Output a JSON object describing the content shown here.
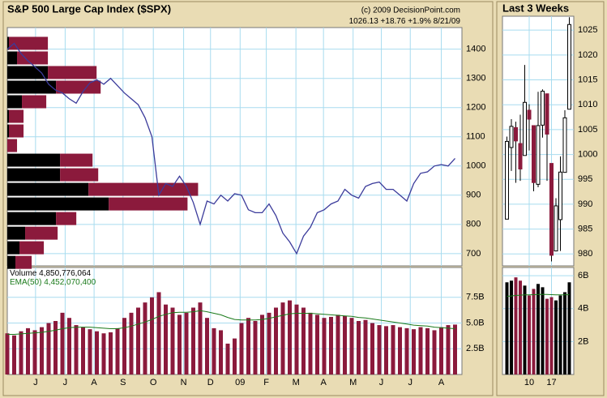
{
  "chart_data": [
    {
      "type": "line",
      "title": "S&P 500 Large Cap Index ($SPX)",
      "source": "(c) 2009 DecisionPoint.com",
      "last": 1026.13,
      "change": 18.76,
      "change_label": "+18.76",
      "change_pct": 1.9,
      "change_pct_label": "+1.9%",
      "date": "8/21/09",
      "color": "#3b3b9b",
      "grid": true,
      "x": [
        0,
        1,
        2,
        3,
        4,
        5,
        6,
        7,
        8,
        9,
        10,
        11,
        12,
        13,
        14,
        15,
        16,
        17,
        18,
        19,
        20,
        21,
        22,
        23,
        24,
        25,
        26,
        27,
        28,
        29,
        30,
        31,
        32,
        33,
        34,
        35,
        36,
        37,
        38,
        39,
        40,
        41,
        42,
        43,
        44,
        45,
        46,
        47,
        48,
        49,
        50,
        51,
        52,
        53,
        54,
        55,
        56,
        57,
        58,
        59,
        60,
        61,
        62,
        63,
        64,
        65
      ],
      "values": [
        1400,
        1420,
        1385,
        1360,
        1340,
        1318,
        1280,
        1260,
        1250,
        1230,
        1215,
        1255,
        1285,
        1295,
        1280,
        1300,
        1275,
        1250,
        1230,
        1210,
        1165,
        1100,
        900,
        940,
        930,
        965,
        930,
        875,
        800,
        880,
        870,
        900,
        880,
        905,
        900,
        850,
        840,
        840,
        870,
        830,
        770,
        740,
        700,
        760,
        790,
        840,
        850,
        870,
        880,
        920,
        900,
        890,
        930,
        940,
        945,
        920,
        920,
        900,
        880,
        940,
        975,
        980,
        1000,
        1005,
        1000,
        1026
      ],
      "xlim": [
        0,
        66
      ],
      "xticks": [
        {
          "value": 4.1,
          "label": "J"
        },
        {
          "value": 8.4,
          "label": "J"
        },
        {
          "value": 12.6,
          "label": "A"
        },
        {
          "value": 16.8,
          "label": "S"
        },
        {
          "value": 21.2,
          "label": "O"
        },
        {
          "value": 25.6,
          "label": "N"
        },
        {
          "value": 29.5,
          "label": "D"
        },
        {
          "value": 33.8,
          "label": "09"
        },
        {
          "value": 37.6,
          "label": "F"
        },
        {
          "value": 41.9,
          "label": "M"
        },
        {
          "value": 45.9,
          "label": "A"
        },
        {
          "value": 50.2,
          "label": "M"
        },
        {
          "value": 54.3,
          "label": "J"
        },
        {
          "value": 58.5,
          "label": "J"
        },
        {
          "value": 63,
          "label": "A"
        }
      ],
      "ylim": [
        658,
        1474
      ],
      "yticks": [
        700,
        800,
        900,
        1000,
        1100,
        1200,
        1300,
        1400
      ],
      "volume_by_price": {
        "bins": [
          645,
          695,
          745,
          795,
          845,
          895,
          945,
          995,
          1045,
          1095,
          1145,
          1195,
          1245,
          1295,
          1345,
          1395,
          1445
        ],
        "dark_color": "#000000",
        "red_color": "#8b1a3c",
        "xlim": [
          0,
          560
        ],
        "dark_values": [
          10,
          15,
          22,
          60,
          125,
          100,
          65,
          65,
          0,
          2,
          2,
          18,
          60,
          50,
          12,
          2
        ],
        "red_values": [
          20,
          30,
          40,
          25,
          97,
          135,
          47,
          40,
          12,
          18,
          18,
          30,
          55,
          60,
          38,
          48
        ]
      }
    },
    {
      "type": "bar",
      "label": "Volume",
      "value": 4850776064,
      "value_label": "4,850,776,064",
      "ema_label": "EMA(50)",
      "ema_value": 4452070400,
      "ema_value_label": "4,452,070,400",
      "color": "#8b1a3c",
      "ema_color": "#1a7a1a",
      "values": [
        4000000000.0,
        3800000000.0,
        4200000000.0,
        4500000000.0,
        4300000000.0,
        4600000000.0,
        5000000000.0,
        5200000000.0,
        6000000000.0,
        5500000000.0,
        4800000000.0,
        4600000000.0,
        4400000000.0,
        4200000000.0,
        4000000000.0,
        4100000000.0,
        4500000000.0,
        5500000000.0,
        6000000000.0,
        6500000000.0,
        7000000000.0,
        7500000000.0,
        8000000000.0,
        6800000000.0,
        6500000000.0,
        5800000000.0,
        6000000000.0,
        6500000000.0,
        7000000000.0,
        5500000000.0,
        4500000000.0,
        4300000000.0,
        3000000000.0,
        3500000000.0,
        5000000000.0,
        5500000000.0,
        5200000000.0,
        5800000000.0,
        6000000000.0,
        6500000000.0,
        7000000000.0,
        7200000000.0,
        6800000000.0,
        6500000000.0,
        6000000000.0,
        5800000000.0,
        5500000000.0,
        5600000000.0,
        5800000000.0,
        5700000000.0,
        5500000000.0,
        5200000000.0,
        5300000000.0,
        5000000000.0,
        4800000000.0,
        4700000000.0,
        4800000000.0,
        4600000000.0,
        4500000000.0,
        4400000000.0,
        4600000000.0,
        4500000000.0,
        4300000000.0,
        4600000000.0,
        4800000000.0,
        4850000000.0
      ],
      "ema": [
        3900000000.0,
        3900000000.0,
        3950000000.0,
        4000000000.0,
        4050000000.0,
        4100000000.0,
        4200000000.0,
        4300000000.0,
        4450000000.0,
        4550000000.0,
        4600000000.0,
        4600000000.0,
        4600000000.0,
        4550000000.0,
        4500000000.0,
        4450000000.0,
        4450000000.0,
        4550000000.0,
        4700000000.0,
        4900000000.0,
        5100000000.0,
        5350000000.0,
        5650000000.0,
        5850000000.0,
        6000000000.0,
        6050000000.0,
        6050000000.0,
        6100000000.0,
        6200000000.0,
        6100000000.0,
        5950000000.0,
        5800000000.0,
        5550000000.0,
        5350000000.0,
        5300000000.0,
        5300000000.0,
        5300000000.0,
        5350000000.0,
        5450000000.0,
        5600000000.0,
        5750000000.0,
        5900000000.0,
        5950000000.0,
        5950000000.0,
        5950000000.0,
        5900000000.0,
        5850000000.0,
        5800000000.0,
        5750000000.0,
        5700000000.0,
        5650000000.0,
        5550000000.0,
        5500000000.0,
        5400000000.0,
        5300000000.0,
        5200000000.0,
        5100000000.0,
        5000000000.0,
        4900000000.0,
        4800000000.0,
        4750000000.0,
        4700000000.0,
        4600000000.0,
        4550000000.0,
        4500000000.0,
        4450000000.0
      ],
      "ylim": [
        0,
        10400000000.0
      ],
      "yticks": [
        {
          "value": 2500000000.0,
          "label": "2.5B"
        },
        {
          "value": 5000000000.0,
          "label": "5.0B"
        },
        {
          "value": 7500000000.0,
          "label": "7.5B"
        }
      ]
    },
    {
      "type": "candlestick",
      "title": "Last 3 Weeks",
      "up_color": "#ffffff",
      "down_color": "#8b1a3c",
      "grid": true,
      "x": [
        0,
        1,
        2,
        3,
        4,
        5,
        6,
        7,
        8,
        9,
        10,
        11,
        12,
        13,
        14
      ],
      "xlim": [
        -1,
        15
      ],
      "xticks": [
        {
          "value": 5,
          "label": "10"
        },
        {
          "value": 10,
          "label": "17"
        }
      ],
      "open": [
        987.0,
        1001.4,
        1005.4,
        1002.2,
        999.8,
        1008.9,
        1005.8,
        994.0,
        1005.9,
        1012.2,
        998.2,
        980.6,
        986.9,
        996.4,
        1009.1
      ],
      "high": [
        1003.6,
        1007.1,
        1006.6,
        1008.0,
        1018.0,
        1010.1,
        1005.8,
        1012.6,
        1013.1,
        1012.2,
        998.2,
        991.2,
        999.6,
        1008.9,
        1027.6
      ],
      "low": [
        987.0,
        996.7,
        994.3,
        994.7,
        999.8,
        1000.8,
        992.6,
        993.4,
        1003.4,
        994.7,
        978.5,
        980.6,
        980.6,
        996.4,
        1009.1
      ],
      "close": [
        1002.63,
        1005.65,
        1002.72,
        997.08,
        1010.48,
        1007.1,
        994.35,
        1005.81,
        1012.73,
        1004.09,
        979.73,
        989.67,
        996.46,
        1007.37,
        1026.13
      ],
      "ylim": [
        977.6,
        1027.8
      ],
      "yticks": [
        980,
        985,
        990,
        995,
        1000,
        1005,
        1010,
        1015,
        1020,
        1025
      ]
    },
    {
      "type": "bar",
      "color": "#8b1a3c",
      "up_color": "#000000",
      "ema_color": "#1a7a1a",
      "values": [
        5600000000.0,
        5700000000.0,
        5900000000.0,
        5700000000.0,
        5400000000.0,
        4800000000.0,
        5200000000.0,
        5500000000.0,
        5300000000.0,
        4600000000.0,
        4700000000.0,
        4500000000.0,
        4800000000.0,
        5000000000.0,
        5600000000.0
      ],
      "ema": [
        4750000000.0,
        4770000000.0,
        4800000000.0,
        4820000000.0,
        4840000000.0,
        4840000000.0,
        4850000000.0,
        4860000000.0,
        4870000000.0,
        4860000000.0,
        4850000000.0,
        4840000000.0,
        4840000000.0,
        4840000000.0,
        4850000000.0
      ],
      "ylim": [
        0,
        6500000000.0
      ],
      "yticks": [
        {
          "value": 2000000000.0,
          "label": "2B"
        },
        {
          "value": 4000000000.0,
          "label": "4B"
        },
        {
          "value": 6000000000.0,
          "label": "6B"
        }
      ]
    }
  ]
}
